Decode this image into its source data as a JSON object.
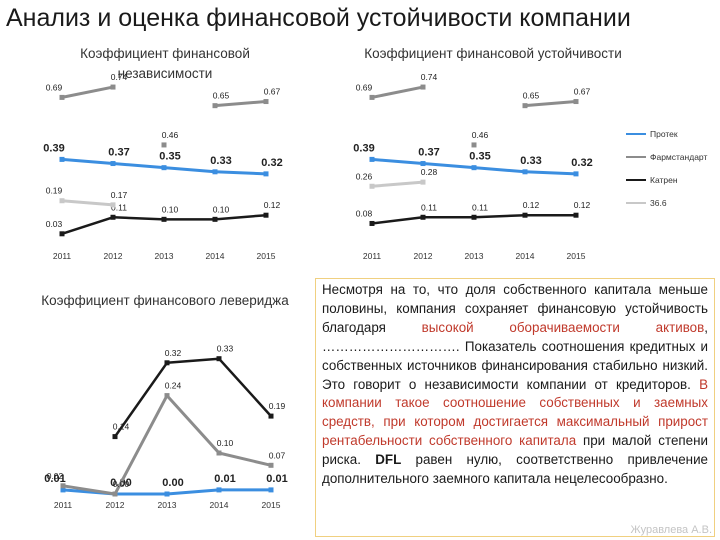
{
  "page": {
    "title": "Анализ и оценка финансовой устойчивости компании",
    "author": "Журавлева А.В."
  },
  "legend": [
    {
      "name": "Протек",
      "color": "#3b8ee0"
    },
    {
      "name": "Фармстандарт",
      "color": "#8c8c8c"
    },
    {
      "name": "Катрен",
      "color": "#1a1a1a"
    },
    {
      "name": "36.6",
      "color": "#c8c8c8"
    }
  ],
  "text": {
    "t1": "Несмотря на то, что доля собственного капитала меньше половины, компания сохраняет финансовую устойчивость благодаря ",
    "t1_red": "высокой оборачиваемости активов",
    "t2": ", …………………………. Показатель соотношения кредитных и собственных источников финансирования стабильно низкий. Это говорит о независимости компании от кредиторов. ",
    "t2_red": "В компании такое соотношение собственных и заемных средств, при котором достигается максимальный прирост рентабельности собственного капитала",
    "t3": " при малой степени риска. ",
    "t3_bold": "DFL",
    "t4": " равен нулю, соответственно привлечение дополнительного заемного капитала нецелесообразно."
  },
  "chart_data": [
    {
      "type": "line",
      "title": "Коэффициент финансовой независимости",
      "categories": [
        "2011",
        "2012",
        "2013",
        "2014",
        "2015"
      ],
      "ylim": [
        0,
        0.75
      ],
      "series": [
        {
          "name": "Протек",
          "values": [
            0.39,
            0.37,
            0.35,
            0.33,
            0.32
          ],
          "labels": [
            "0.39",
            "0.37",
            "0.35",
            "0.33",
            "0.32"
          ]
        },
        {
          "name": "Фармстандарт",
          "values": [
            0.69,
            0.74,
            null,
            0.65,
            0.67
          ],
          "labels": [
            "0.69",
            "0.74",
            "",
            "0.65",
            "0.67"
          ]
        },
        {
          "name": "Катрен",
          "values": [
            0.03,
            0.11,
            0.1,
            0.1,
            0.12
          ],
          "labels": [
            "0.03",
            "0.11",
            "0.10",
            "0.10",
            "0.12"
          ]
        },
        {
          "name": "36.6",
          "values": [
            0.19,
            0.17,
            null,
            null,
            null
          ],
          "labels": [
            "0.19",
            "0.17",
            "",
            "",
            ""
          ]
        },
        {
          "name": "",
          "values": [
            null,
            null,
            0.46,
            null,
            null
          ],
          "labels": [
            "",
            "",
            "0.46",
            "",
            ""
          ]
        }
      ]
    },
    {
      "type": "line",
      "title": "Коэффициент финансовой устойчивости",
      "categories": [
        "2011",
        "2012",
        "2013",
        "2014",
        "2015"
      ],
      "ylim": [
        0,
        0.75
      ],
      "series": [
        {
          "name": "Протек",
          "values": [
            0.39,
            0.37,
            0.35,
            0.33,
            0.32
          ],
          "labels": [
            "0.39",
            "0.37",
            "0.35",
            "0.33",
            "0.32"
          ]
        },
        {
          "name": "Фармстандарт",
          "values": [
            0.69,
            0.74,
            null,
            0.65,
            0.67
          ],
          "labels": [
            "0.69",
            "0.74",
            "",
            "0.65",
            "0.67"
          ]
        },
        {
          "name": "Катрен",
          "values": [
            0.08,
            0.11,
            0.11,
            0.12,
            0.12
          ],
          "labels": [
            "0.08",
            "0.11",
            "0.11",
            "0.12",
            "0.12"
          ]
        },
        {
          "name": "36.6",
          "values": [
            0.26,
            0.28,
            null,
            null,
            null
          ],
          "labels": [
            "0.26",
            "0.28",
            "",
            "",
            ""
          ]
        },
        {
          "name": "",
          "values": [
            null,
            null,
            0.46,
            null,
            null
          ],
          "labels": [
            "",
            "",
            "0.46",
            "",
            ""
          ]
        }
      ]
    },
    {
      "type": "line",
      "title": "Коэффициент финансового левериджа",
      "categories": [
        "2011",
        "2012",
        "2013",
        "2014",
        "2015"
      ],
      "ylim": [
        0,
        0.4
      ],
      "series": [
        {
          "name": "Протек",
          "values": [
            0.01,
            0.0,
            0.0,
            0.01,
            0.01
          ],
          "labels": [
            "0.01",
            "0.00",
            "0.00",
            "0.01",
            "0.01"
          ]
        },
        {
          "name": "Фармстандарт",
          "values": [
            0.02,
            0.0,
            0.24,
            0.1,
            0.07
          ],
          "labels": [
            "0.02",
            "0.00",
            "0.24",
            "0.10",
            "0.07"
          ]
        },
        {
          "name": "Катрен",
          "values": [
            null,
            0.14,
            0.32,
            0.33,
            0.19
          ],
          "labels": [
            "",
            "0.14",
            "0.32",
            "0.33",
            "0.19"
          ]
        },
        {
          "name": "36.6",
          "values": [
            null,
            null,
            null,
            null,
            null
          ],
          "labels": [
            "",
            "",
            "",
            "",
            ""
          ]
        }
      ]
    }
  ]
}
